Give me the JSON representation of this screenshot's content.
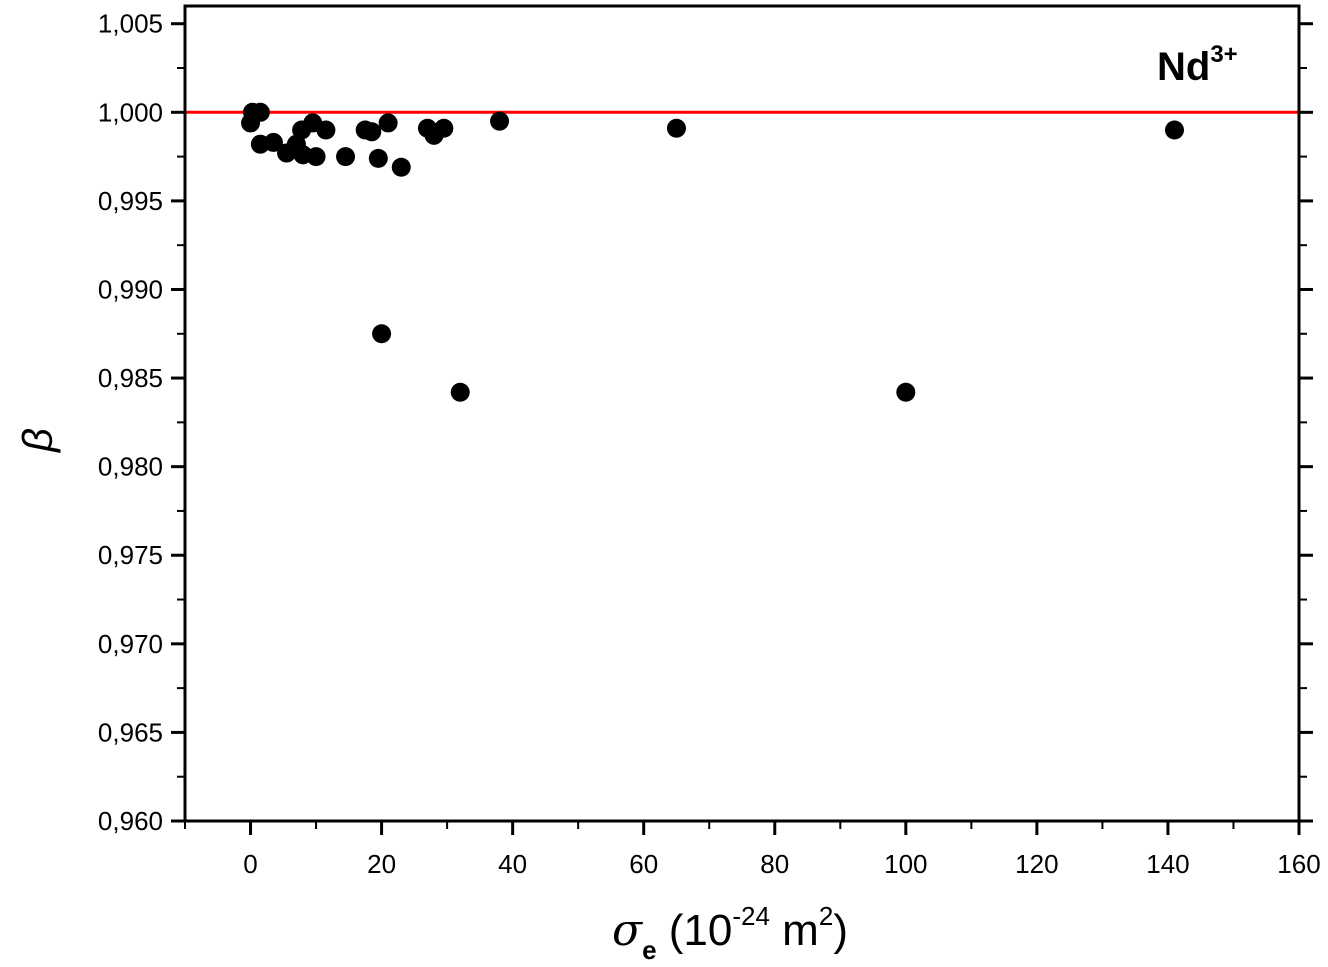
{
  "chart_data": {
    "type": "scatter",
    "title": "",
    "xlabel": {
      "symbol": "σ",
      "subscript": "e",
      "unit_prefix": " (10",
      "exponent": "-24",
      "unit": " m",
      "unit_exponent": "2",
      "close": ")"
    },
    "ylabel": "β",
    "xlim": [
      -10,
      160
    ],
    "ylim": [
      0.96,
      1.006
    ],
    "x_ticks": [
      0,
      20,
      40,
      60,
      80,
      100,
      120,
      140,
      160
    ],
    "y_ticks": [
      0.96,
      0.965,
      0.97,
      0.975,
      0.98,
      0.985,
      0.99,
      0.995,
      1.0,
      1.005
    ],
    "y_tick_labels": [
      "0,960",
      "0,965",
      "0,970",
      "0,975",
      "0,980",
      "0,985",
      "0,990",
      "0,995",
      "1,000",
      "1,005"
    ],
    "x_tick_labels": [
      "0",
      "20",
      "40",
      "60",
      "80",
      "100",
      "120",
      "140",
      "160"
    ],
    "reference_line": {
      "y": 1.0,
      "color": "#ff0000"
    },
    "annotation": {
      "text": "Nd",
      "superscript": "3+"
    },
    "point_color": "#000000",
    "series": [
      {
        "points": [
          [
            0.0,
            0.9994
          ],
          [
            0.3,
            1.0
          ],
          [
            1.5,
            1.0
          ],
          [
            1.5,
            0.9982
          ],
          [
            3.5,
            0.9983
          ],
          [
            5.5,
            0.9977
          ],
          [
            7.0,
            0.9982
          ],
          [
            8.0,
            0.9976
          ],
          [
            7.8,
            0.999
          ],
          [
            9.5,
            0.9994
          ],
          [
            10.0,
            0.9975
          ],
          [
            11.5,
            0.999
          ],
          [
            14.5,
            0.9975
          ],
          [
            17.5,
            0.999
          ],
          [
            18.5,
            0.9989
          ],
          [
            19.5,
            0.9974
          ],
          [
            21.0,
            0.9994
          ],
          [
            23.0,
            0.9969
          ],
          [
            20.0,
            0.9875
          ],
          [
            27.0,
            0.9991
          ],
          [
            28.0,
            0.9987
          ],
          [
            29.5,
            0.9991
          ],
          [
            32.0,
            0.9842
          ],
          [
            38.0,
            0.9995
          ],
          [
            65.0,
            0.9991
          ],
          [
            100.0,
            0.9842
          ],
          [
            141.0,
            0.999
          ]
        ]
      }
    ]
  }
}
